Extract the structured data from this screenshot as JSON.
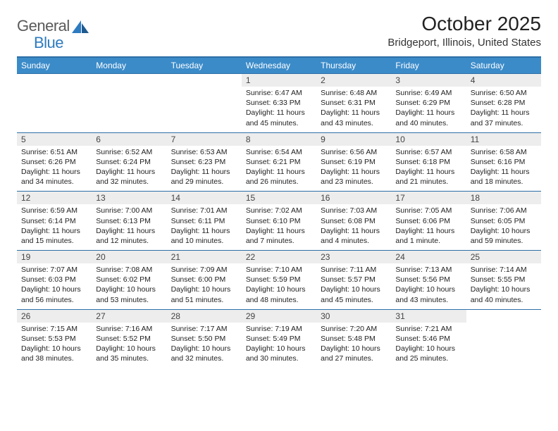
{
  "logo": {
    "text1": "General",
    "text2": "Blue"
  },
  "title": "October 2025",
  "subtitle": "Bridgeport, Illinois, United States",
  "colors": {
    "header_bg": "#3b8bc9",
    "header_border": "#2d6fa8",
    "daynum_bg": "#ededed",
    "text": "#1a1a1a",
    "logo_gray": "#5a5a5a",
    "logo_blue": "#2d7bc0"
  },
  "weekdays": [
    "Sunday",
    "Monday",
    "Tuesday",
    "Wednesday",
    "Thursday",
    "Friday",
    "Saturday"
  ],
  "weeks": [
    [
      null,
      null,
      null,
      {
        "n": "1",
        "sr": "6:47 AM",
        "ss": "6:33 PM",
        "dl": "11 hours and 45 minutes."
      },
      {
        "n": "2",
        "sr": "6:48 AM",
        "ss": "6:31 PM",
        "dl": "11 hours and 43 minutes."
      },
      {
        "n": "3",
        "sr": "6:49 AM",
        "ss": "6:29 PM",
        "dl": "11 hours and 40 minutes."
      },
      {
        "n": "4",
        "sr": "6:50 AM",
        "ss": "6:28 PM",
        "dl": "11 hours and 37 minutes."
      }
    ],
    [
      {
        "n": "5",
        "sr": "6:51 AM",
        "ss": "6:26 PM",
        "dl": "11 hours and 34 minutes."
      },
      {
        "n": "6",
        "sr": "6:52 AM",
        "ss": "6:24 PM",
        "dl": "11 hours and 32 minutes."
      },
      {
        "n": "7",
        "sr": "6:53 AM",
        "ss": "6:23 PM",
        "dl": "11 hours and 29 minutes."
      },
      {
        "n": "8",
        "sr": "6:54 AM",
        "ss": "6:21 PM",
        "dl": "11 hours and 26 minutes."
      },
      {
        "n": "9",
        "sr": "6:56 AM",
        "ss": "6:19 PM",
        "dl": "11 hours and 23 minutes."
      },
      {
        "n": "10",
        "sr": "6:57 AM",
        "ss": "6:18 PM",
        "dl": "11 hours and 21 minutes."
      },
      {
        "n": "11",
        "sr": "6:58 AM",
        "ss": "6:16 PM",
        "dl": "11 hours and 18 minutes."
      }
    ],
    [
      {
        "n": "12",
        "sr": "6:59 AM",
        "ss": "6:14 PM",
        "dl": "11 hours and 15 minutes."
      },
      {
        "n": "13",
        "sr": "7:00 AM",
        "ss": "6:13 PM",
        "dl": "11 hours and 12 minutes."
      },
      {
        "n": "14",
        "sr": "7:01 AM",
        "ss": "6:11 PM",
        "dl": "11 hours and 10 minutes."
      },
      {
        "n": "15",
        "sr": "7:02 AM",
        "ss": "6:10 PM",
        "dl": "11 hours and 7 minutes."
      },
      {
        "n": "16",
        "sr": "7:03 AM",
        "ss": "6:08 PM",
        "dl": "11 hours and 4 minutes."
      },
      {
        "n": "17",
        "sr": "7:05 AM",
        "ss": "6:06 PM",
        "dl": "11 hours and 1 minute."
      },
      {
        "n": "18",
        "sr": "7:06 AM",
        "ss": "6:05 PM",
        "dl": "10 hours and 59 minutes."
      }
    ],
    [
      {
        "n": "19",
        "sr": "7:07 AM",
        "ss": "6:03 PM",
        "dl": "10 hours and 56 minutes."
      },
      {
        "n": "20",
        "sr": "7:08 AM",
        "ss": "6:02 PM",
        "dl": "10 hours and 53 minutes."
      },
      {
        "n": "21",
        "sr": "7:09 AM",
        "ss": "6:00 PM",
        "dl": "10 hours and 51 minutes."
      },
      {
        "n": "22",
        "sr": "7:10 AM",
        "ss": "5:59 PM",
        "dl": "10 hours and 48 minutes."
      },
      {
        "n": "23",
        "sr": "7:11 AM",
        "ss": "5:57 PM",
        "dl": "10 hours and 45 minutes."
      },
      {
        "n": "24",
        "sr": "7:13 AM",
        "ss": "5:56 PM",
        "dl": "10 hours and 43 minutes."
      },
      {
        "n": "25",
        "sr": "7:14 AM",
        "ss": "5:55 PM",
        "dl": "10 hours and 40 minutes."
      }
    ],
    [
      {
        "n": "26",
        "sr": "7:15 AM",
        "ss": "5:53 PM",
        "dl": "10 hours and 38 minutes."
      },
      {
        "n": "27",
        "sr": "7:16 AM",
        "ss": "5:52 PM",
        "dl": "10 hours and 35 minutes."
      },
      {
        "n": "28",
        "sr": "7:17 AM",
        "ss": "5:50 PM",
        "dl": "10 hours and 32 minutes."
      },
      {
        "n": "29",
        "sr": "7:19 AM",
        "ss": "5:49 PM",
        "dl": "10 hours and 30 minutes."
      },
      {
        "n": "30",
        "sr": "7:20 AM",
        "ss": "5:48 PM",
        "dl": "10 hours and 27 minutes."
      },
      {
        "n": "31",
        "sr": "7:21 AM",
        "ss": "5:46 PM",
        "dl": "10 hours and 25 minutes."
      },
      null
    ]
  ],
  "labels": {
    "sunrise": "Sunrise:",
    "sunset": "Sunset:",
    "daylight": "Daylight:"
  }
}
